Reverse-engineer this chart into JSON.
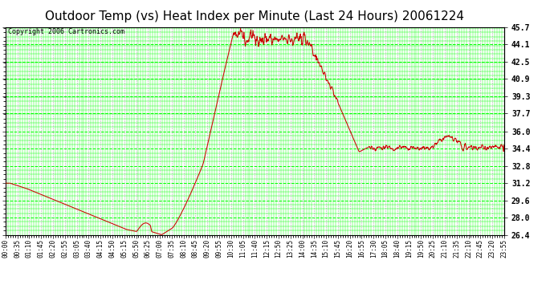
{
  "title": "Outdoor Temp (vs) Heat Index per Minute (Last 24 Hours) 20061224",
  "copyright": "Copyright 2006 Cartronics.com",
  "yticks": [
    26.4,
    28.0,
    29.6,
    31.2,
    32.8,
    34.4,
    36.0,
    37.7,
    39.3,
    40.9,
    42.5,
    44.1,
    45.7
  ],
  "ymin": 26.4,
  "ymax": 45.7,
  "line_color": "#cc0000",
  "background_color": "#ffffff",
  "plot_bg_color": "#ffffff",
  "grid_color_green": "#00ff00",
  "grid_color_gray": "#aaaaaa",
  "xtick_labels": [
    "00:00",
    "00:35",
    "01:10",
    "01:45",
    "02:20",
    "02:55",
    "03:05",
    "03:40",
    "04:15",
    "04:50",
    "05:15",
    "05:50",
    "06:25",
    "07:00",
    "07:35",
    "08:10",
    "08:45",
    "09:20",
    "09:55",
    "10:30",
    "11:05",
    "11:40",
    "12:15",
    "12:50",
    "13:25",
    "14:00",
    "14:35",
    "15:10",
    "15:45",
    "16:20",
    "16:55",
    "17:30",
    "18:05",
    "18:40",
    "19:15",
    "19:50",
    "20:25",
    "21:10",
    "21:35",
    "22:10",
    "22:45",
    "23:20",
    "23:55"
  ],
  "title_fontsize": 11,
  "copyright_fontsize": 6,
  "tick_label_fontsize": 5.5,
  "ytick_fontsize": 7
}
